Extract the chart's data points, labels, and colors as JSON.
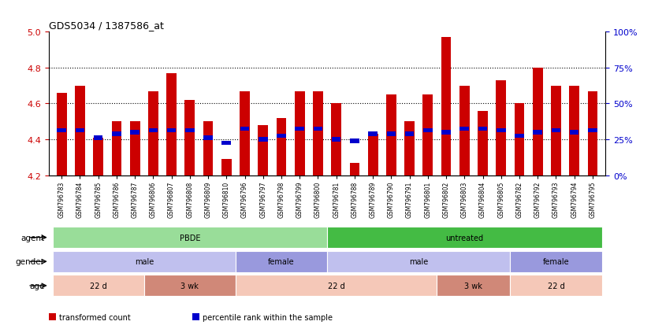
{
  "title": "GDS5034 / 1387586_at",
  "samples": [
    "GSM796783",
    "GSM796784",
    "GSM796785",
    "GSM796786",
    "GSM796787",
    "GSM796806",
    "GSM796807",
    "GSM796808",
    "GSM796809",
    "GSM796810",
    "GSM796796",
    "GSM796797",
    "GSM796798",
    "GSM796799",
    "GSM796800",
    "GSM796781",
    "GSM796788",
    "GSM796789",
    "GSM796790",
    "GSM796791",
    "GSM796801",
    "GSM796802",
    "GSM796803",
    "GSM796804",
    "GSM796805",
    "GSM796782",
    "GSM796792",
    "GSM796793",
    "GSM796794",
    "GSM796795"
  ],
  "bar_values": [
    4.66,
    4.7,
    4.41,
    4.5,
    4.5,
    4.67,
    4.77,
    4.62,
    4.5,
    4.29,
    4.67,
    4.48,
    4.52,
    4.67,
    4.67,
    4.6,
    4.27,
    4.43,
    4.65,
    4.5,
    4.65,
    4.97,
    4.7,
    4.56,
    4.73,
    4.6,
    4.8,
    4.7,
    4.7,
    4.67
  ],
  "percentile_values": [
    4.45,
    4.45,
    4.41,
    4.43,
    4.44,
    4.45,
    4.45,
    4.45,
    4.41,
    4.38,
    4.46,
    4.4,
    4.42,
    4.46,
    4.46,
    4.4,
    4.39,
    4.43,
    4.43,
    4.43,
    4.45,
    4.44,
    4.46,
    4.46,
    4.45,
    4.42,
    4.44,
    4.45,
    4.44,
    4.45
  ],
  "ylim": [
    4.2,
    5.0
  ],
  "yticks": [
    4.2,
    4.4,
    4.6,
    4.8,
    5.0
  ],
  "right_yticks": [
    0,
    25,
    50,
    75,
    100
  ],
  "bar_color": "#cc0000",
  "percentile_color": "#0000cc",
  "agent_groups": [
    {
      "label": "PBDE",
      "start": 0,
      "end": 15,
      "color": "#99dd99"
    },
    {
      "label": "untreated",
      "start": 15,
      "end": 30,
      "color": "#44bb44"
    }
  ],
  "gender_groups": [
    {
      "label": "male",
      "start": 0,
      "end": 10,
      "color": "#c0c0ee"
    },
    {
      "label": "female",
      "start": 10,
      "end": 15,
      "color": "#9999dd"
    },
    {
      "label": "male",
      "start": 15,
      "end": 25,
      "color": "#c0c0ee"
    },
    {
      "label": "female",
      "start": 25,
      "end": 30,
      "color": "#9999dd"
    }
  ],
  "age_groups": [
    {
      "label": "22 d",
      "start": 0,
      "end": 5,
      "color": "#f5c8b8"
    },
    {
      "label": "3 wk",
      "start": 5,
      "end": 10,
      "color": "#d08878"
    },
    {
      "label": "22 d",
      "start": 10,
      "end": 21,
      "color": "#f5c8b8"
    },
    {
      "label": "3 wk",
      "start": 21,
      "end": 25,
      "color": "#d08878"
    },
    {
      "label": "22 d",
      "start": 25,
      "end": 30,
      "color": "#f5c8b8"
    }
  ],
  "row_labels": [
    "agent",
    "gender",
    "age"
  ],
  "legend_items": [
    {
      "label": "transformed count",
      "color": "#cc0000"
    },
    {
      "label": "percentile rank within the sample",
      "color": "#0000cc"
    }
  ]
}
